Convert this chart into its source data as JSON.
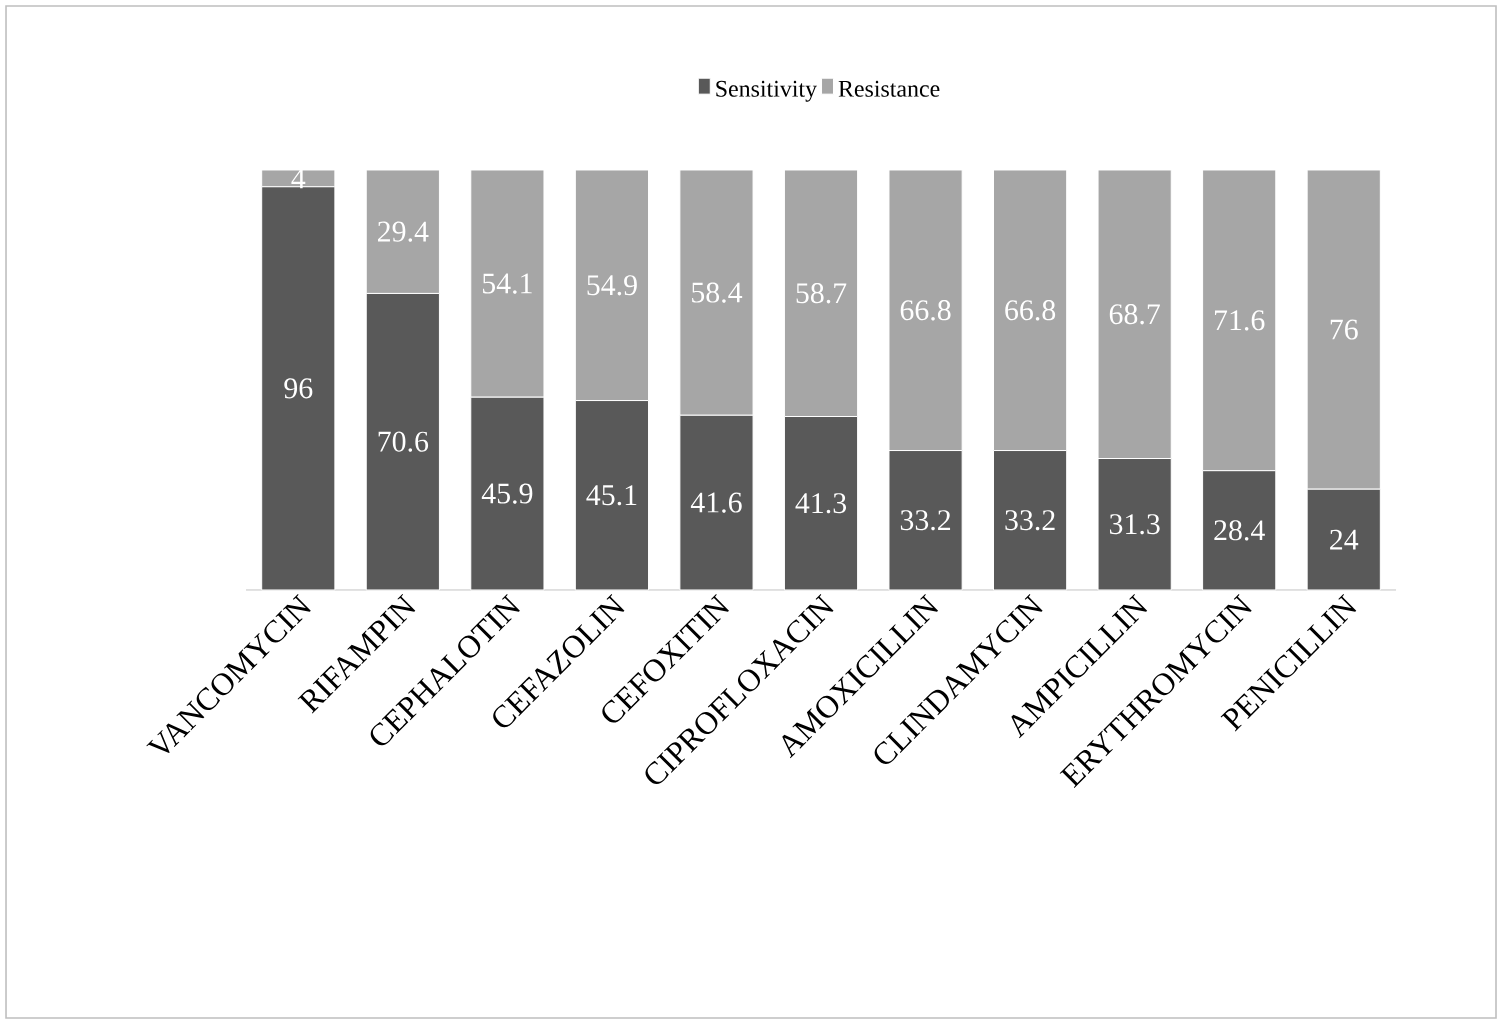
{
  "chart_data": {
    "type": "bar",
    "stacked": true,
    "categories": [
      "VANCOMYCIN",
      "RIFAMPIN",
      "CEPHALOTIN",
      "CEFAZOLIN",
      "CEFOXITIN",
      "CIPROFLOXACIN",
      "AMOXICILLIN",
      "CLINDAMYCIN",
      "AMPICILLIN",
      "ERYTHROMYCIN",
      "PENICILLIN"
    ],
    "series": [
      {
        "name": "Sensitivity",
        "color": "#595959",
        "values": [
          96,
          70.6,
          45.9,
          45.1,
          41.6,
          41.3,
          33.2,
          33.2,
          31.3,
          28.4,
          24
        ]
      },
      {
        "name": "Resistance",
        "color": "#a6a6a6",
        "values": [
          4,
          29.4,
          54.1,
          54.9,
          58.4,
          58.7,
          66.8,
          66.8,
          68.7,
          71.6,
          76
        ]
      }
    ],
    "tick_labels": "x",
    "data_labels": true,
    "legend": "top"
  }
}
